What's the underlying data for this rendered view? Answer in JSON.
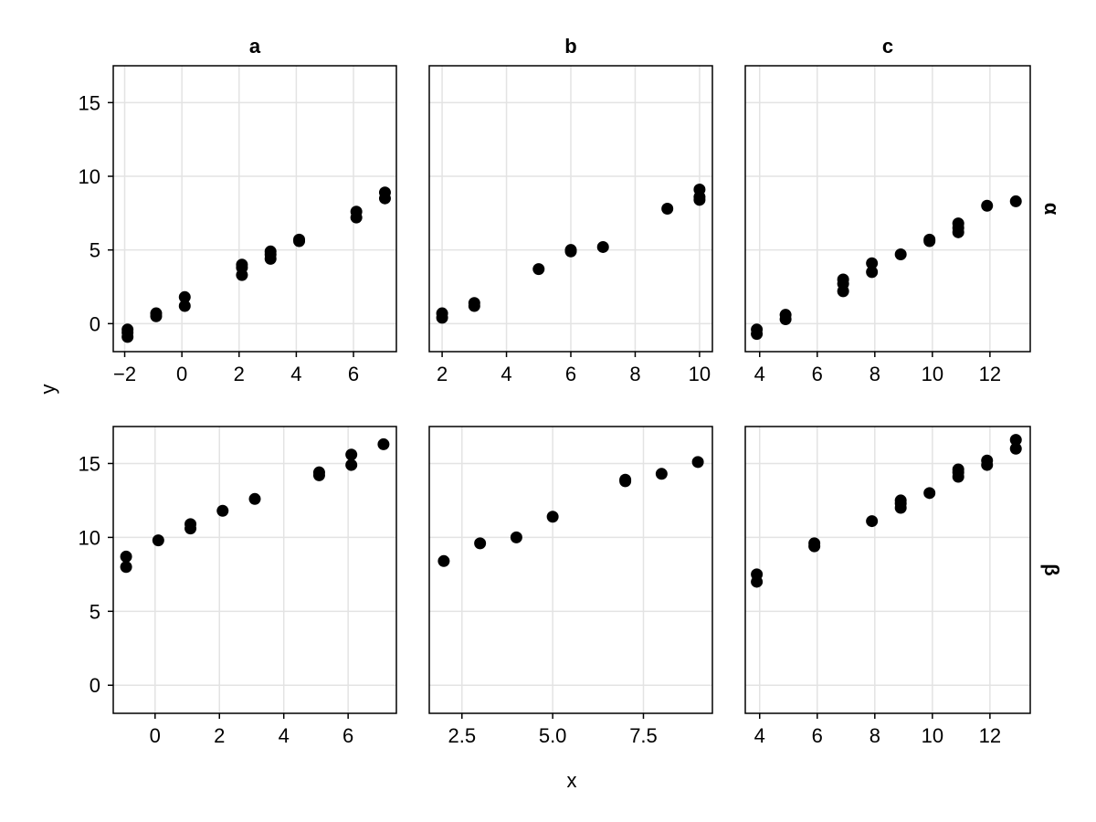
{
  "chart_data": {
    "type": "scatter",
    "layout": "facet grid, 2 rows x 3 columns",
    "column_titles": [
      "a",
      "b",
      "c"
    ],
    "row_labels": [
      "α",
      "β"
    ],
    "xlabel": "x",
    "ylabel": "y",
    "grid": true,
    "marker_color": "#000000",
    "ylim": [
      -1.9,
      17.5
    ],
    "yticks": [
      0,
      5,
      10,
      15
    ],
    "panels": [
      {
        "row": "α",
        "col": "a",
        "xlim": [
          -2.4,
          7.5
        ],
        "xticks": [
          -2,
          0,
          2,
          4,
          6
        ],
        "points": [
          [
            -1.9,
            -0.9
          ],
          [
            -1.9,
            -0.6
          ],
          [
            -1.9,
            -0.4
          ],
          [
            -0.9,
            0.5
          ],
          [
            -0.9,
            0.7
          ],
          [
            0.1,
            1.2
          ],
          [
            0.1,
            1.8
          ],
          [
            2.1,
            3.3
          ],
          [
            2.1,
            3.8
          ],
          [
            2.1,
            4.0
          ],
          [
            3.1,
            4.4
          ],
          [
            3.1,
            4.7
          ],
          [
            3.1,
            4.9
          ],
          [
            4.1,
            5.6
          ],
          [
            4.1,
            5.7
          ],
          [
            6.1,
            7.2
          ],
          [
            6.1,
            7.6
          ],
          [
            7.1,
            8.5
          ],
          [
            7.1,
            8.9
          ]
        ]
      },
      {
        "row": "α",
        "col": "b",
        "xlim": [
          1.6,
          10.4
        ],
        "xticks": [
          2,
          4,
          6,
          8,
          10
        ],
        "points": [
          [
            2,
            0.4
          ],
          [
            2,
            0.7
          ],
          [
            3,
            1.2
          ],
          [
            3,
            1.4
          ],
          [
            5,
            3.7
          ],
          [
            6,
            4.9
          ],
          [
            6,
            5.0
          ],
          [
            7,
            5.2
          ],
          [
            9,
            7.8
          ],
          [
            10,
            8.4
          ],
          [
            10,
            8.6
          ],
          [
            10,
            9.1
          ]
        ]
      },
      {
        "row": "α",
        "col": "c",
        "xlim": [
          3.5,
          13.4
        ],
        "xticks": [
          4,
          6,
          8,
          10,
          12
        ],
        "points": [
          [
            3.9,
            -0.7
          ],
          [
            3.9,
            -0.4
          ],
          [
            4.9,
            0.3
          ],
          [
            4.9,
            0.6
          ],
          [
            6.9,
            2.2
          ],
          [
            6.9,
            2.7
          ],
          [
            6.9,
            3.0
          ],
          [
            7.9,
            3.5
          ],
          [
            7.9,
            4.1
          ],
          [
            8.9,
            4.7
          ],
          [
            9.9,
            5.6
          ],
          [
            9.9,
            5.7
          ],
          [
            10.9,
            6.2
          ],
          [
            10.9,
            6.5
          ],
          [
            10.9,
            6.8
          ],
          [
            11.9,
            8.0
          ],
          [
            12.9,
            8.3
          ]
        ]
      },
      {
        "row": "β",
        "col": "a",
        "xlim": [
          -1.3,
          7.5
        ],
        "xticks": [
          0,
          2,
          4,
          6
        ],
        "points": [
          [
            -0.9,
            8.0
          ],
          [
            -0.9,
            8.7
          ],
          [
            0.1,
            9.8
          ],
          [
            1.1,
            10.6
          ],
          [
            1.1,
            10.9
          ],
          [
            2.1,
            11.8
          ],
          [
            3.1,
            12.6
          ],
          [
            5.1,
            14.2
          ],
          [
            5.1,
            14.4
          ],
          [
            6.1,
            14.9
          ],
          [
            6.1,
            15.6
          ],
          [
            7.1,
            16.3
          ]
        ]
      },
      {
        "row": "β",
        "col": "b",
        "xlim": [
          1.6,
          9.4
        ],
        "xticks": [
          2.5,
          5.0,
          7.5
        ],
        "xtick_labels": [
          "2.5",
          "5.0",
          "7.5"
        ],
        "points": [
          [
            2,
            8.4
          ],
          [
            3,
            9.6
          ],
          [
            4,
            10.0
          ],
          [
            5,
            11.4
          ],
          [
            7,
            13.8
          ],
          [
            7,
            13.9
          ],
          [
            8,
            14.3
          ],
          [
            9,
            15.1
          ]
        ]
      },
      {
        "row": "β",
        "col": "c",
        "xlim": [
          3.5,
          13.4
        ],
        "xticks": [
          4,
          6,
          8,
          10,
          12
        ],
        "points": [
          [
            3.9,
            7.0
          ],
          [
            3.9,
            7.5
          ],
          [
            5.9,
            9.4
          ],
          [
            5.9,
            9.6
          ],
          [
            7.9,
            11.1
          ],
          [
            8.9,
            12.0
          ],
          [
            8.9,
            12.3
          ],
          [
            8.9,
            12.5
          ],
          [
            9.9,
            13.0
          ],
          [
            10.9,
            14.1
          ],
          [
            10.9,
            14.4
          ],
          [
            10.9,
            14.6
          ],
          [
            11.9,
            14.9
          ],
          [
            11.9,
            15.2
          ],
          [
            12.9,
            16.0
          ],
          [
            12.9,
            16.6
          ]
        ]
      }
    ]
  }
}
